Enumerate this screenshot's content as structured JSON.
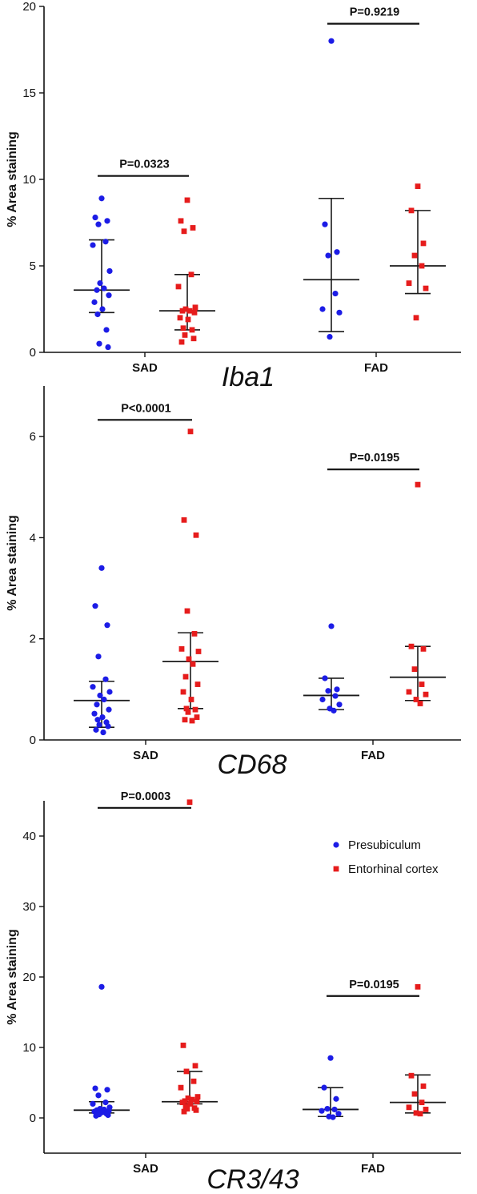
{
  "colors": {
    "Presubiculum": "#1c1ce6",
    "Entorhinal cortex": "#e61c1c",
    "axis": "#111111",
    "error_bar": "#1a1a1a"
  },
  "chart_data": [
    {
      "type": "scatter",
      "title": "Iba1",
      "ylabel": "% Area staining",
      "xlabel": "",
      "ylim": [
        0,
        20
      ],
      "yticks": [
        0,
        5,
        10,
        15,
        20
      ],
      "categories": [
        "SAD",
        "FAD"
      ],
      "series": [
        {
          "name": "Presubiculum",
          "marker": "circle",
          "groups": [
            {
              "category": "SAD",
              "points": [
                8.9,
                7.8,
                7.6,
                7.4,
                6.4,
                6.2,
                4.7,
                4.0,
                3.7,
                3.6,
                3.3,
                2.9,
                2.5,
                2.2,
                1.3,
                0.5,
                0.3
              ],
              "median": 3.6,
              "lower": 2.3,
              "upper": 6.5
            },
            {
              "category": "FAD",
              "points": [
                18.0,
                7.4,
                5.8,
                5.6,
                3.4,
                2.5,
                2.3,
                0.9
              ],
              "median": 4.2,
              "lower": 1.2,
              "upper": 8.9
            }
          ]
        },
        {
          "name": "Entorhinal cortex",
          "marker": "square",
          "groups": [
            {
              "category": "SAD",
              "points": [
                8.8,
                7.6,
                7.2,
                7.0,
                4.5,
                3.8,
                2.6,
                2.5,
                2.4,
                2.4,
                2.3,
                2.0,
                1.9,
                1.4,
                1.3,
                1.0,
                0.8,
                0.6
              ],
              "median": 2.4,
              "lower": 1.3,
              "upper": 4.5
            },
            {
              "category": "FAD",
              "points": [
                9.6,
                8.2,
                6.3,
                5.6,
                5.0,
                4.0,
                3.7,
                2.0
              ],
              "median": 5.0,
              "lower": 3.4,
              "upper": 8.2
            }
          ]
        }
      ],
      "annotations": [
        {
          "text": "P=0.0323",
          "x_from": "SAD:Presubiculum",
          "x_to": "SAD:Entorhinal cortex",
          "y": 10.2
        },
        {
          "text": "P=0.9219",
          "x_from": "FAD:Presubiculum",
          "x_to": "FAD:Entorhinal cortex",
          "y": 19.0
        }
      ]
    },
    {
      "type": "scatter",
      "title": "CD68",
      "ylabel": "% Area staining",
      "xlabel": "",
      "ylim": [
        0,
        7
      ],
      "yticks": [
        0,
        2,
        4,
        6
      ],
      "categories": [
        "SAD",
        "FAD"
      ],
      "series": [
        {
          "name": "Presubiculum",
          "marker": "circle",
          "groups": [
            {
              "category": "SAD",
              "points": [
                3.4,
                2.65,
                2.27,
                1.65,
                1.2,
                1.05,
                0.95,
                0.88,
                0.8,
                0.7,
                0.6,
                0.52,
                0.45,
                0.4,
                0.35,
                0.3,
                0.27,
                0.2,
                0.15
              ],
              "median": 0.78,
              "lower": 0.25,
              "upper": 1.16
            },
            {
              "category": "FAD",
              "points": [
                2.25,
                1.22,
                1.0,
                0.97,
                0.87,
                0.8,
                0.7,
                0.62,
                0.58
              ],
              "median": 0.88,
              "lower": 0.6,
              "upper": 1.22
            }
          ]
        },
        {
          "name": "Entorhinal cortex",
          "marker": "square",
          "groups": [
            {
              "category": "SAD",
              "points": [
                6.1,
                4.35,
                4.05,
                2.55,
                2.1,
                1.8,
                1.75,
                1.6,
                1.5,
                1.25,
                1.1,
                0.95,
                0.8,
                0.62,
                0.6,
                0.55,
                0.45,
                0.4,
                0.38
              ],
              "median": 1.55,
              "lower": 0.62,
              "upper": 2.12
            },
            {
              "category": "FAD",
              "points": [
                5.05,
                1.85,
                1.8,
                1.4,
                1.1,
                0.95,
                0.9,
                0.8,
                0.72
              ],
              "median": 1.24,
              "lower": 0.78,
              "upper": 1.85
            }
          ]
        }
      ],
      "annotations": [
        {
          "text": "P<0.0001",
          "x_from": "SAD:Presubiculum",
          "x_to": "SAD:Entorhinal cortex",
          "y": 6.33
        },
        {
          "text": "P=0.0195",
          "x_from": "FAD:Presubiculum",
          "x_to": "FAD:Entorhinal cortex",
          "y": 5.35
        }
      ]
    },
    {
      "type": "scatter",
      "title": "CR3/43",
      "ylabel": "% Area staining",
      "xlabel": "",
      "ylim": [
        -5,
        45
      ],
      "yticks": [
        0,
        10,
        20,
        30,
        40
      ],
      "categories": [
        "SAD",
        "FAD"
      ],
      "legend": {
        "placement": "top-right",
        "entries": [
          "Presubiculum",
          "Entorhinal cortex"
        ]
      },
      "series": [
        {
          "name": "Presubiculum",
          "marker": "circle",
          "groups": [
            {
              "category": "SAD",
              "points": [
                18.6,
                4.2,
                4.0,
                3.2,
                2.2,
                2.0,
                1.5,
                1.3,
                1.2,
                1.1,
                1.0,
                0.9,
                0.8,
                0.7,
                0.6,
                0.5,
                0.4,
                0.3
              ],
              "median": 1.1,
              "lower": 0.7,
              "upper": 2.3
            },
            {
              "category": "FAD",
              "points": [
                8.5,
                4.3,
                2.7,
                1.3,
                1.2,
                1.0,
                0.6,
                0.2,
                0.1
              ],
              "median": 1.2,
              "lower": 0.2,
              "upper": 4.3
            }
          ]
        },
        {
          "name": "Entorhinal cortex",
          "marker": "square",
          "groups": [
            {
              "category": "SAD",
              "points": [
                44.8,
                10.3,
                7.4,
                6.6,
                5.2,
                4.3,
                3.0,
                2.8,
                2.6,
                2.4,
                2.3,
                2.2,
                2.0,
                1.6,
                1.4,
                1.3,
                1.1,
                0.9
              ],
              "median": 2.3,
              "lower": 2.0,
              "upper": 6.6
            },
            {
              "category": "FAD",
              "points": [
                18.6,
                6.0,
                4.5,
                3.4,
                2.2,
                1.5,
                1.2,
                0.7,
                0.6
              ],
              "median": 2.2,
              "lower": 0.7,
              "upper": 6.1
            }
          ]
        }
      ],
      "annotations": [
        {
          "text": "P=0.0003",
          "x_from": "SAD:Presubiculum",
          "x_to": "SAD:Entorhinal cortex",
          "y": 44.0
        },
        {
          "text": "P=0.0195",
          "x_from": "FAD:Presubiculum",
          "x_to": "FAD:Entorhinal cortex",
          "y": 17.3
        }
      ]
    }
  ]
}
